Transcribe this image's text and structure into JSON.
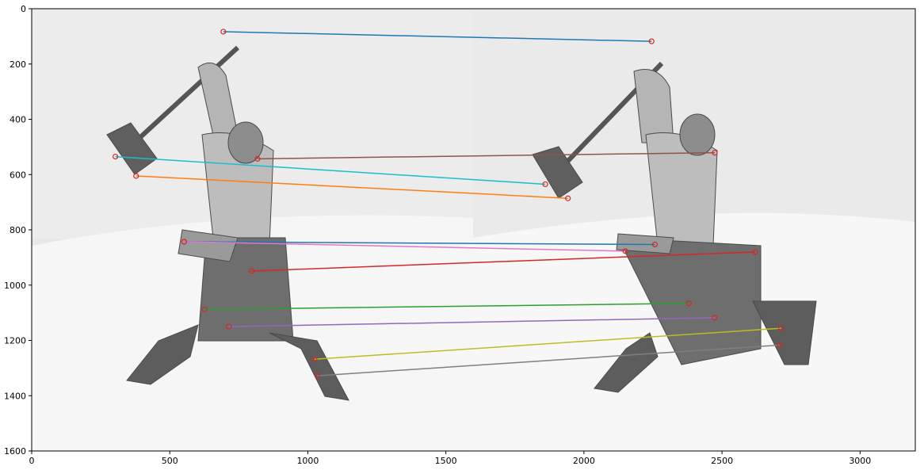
{
  "chart_data": {
    "type": "scatter",
    "title": "",
    "xlabel": "",
    "ylabel": "",
    "xlim": [
      0,
      3200
    ],
    "ylim": [
      1600,
      0
    ],
    "y_inverted": true,
    "grid": false,
    "legend": "none",
    "xticks": [
      "0",
      "500",
      "1000",
      "1500",
      "2000",
      "2500",
      "3000"
    ],
    "yticks": [
      "0",
      "200",
      "400",
      "600",
      "800",
      "1000",
      "1200",
      "1400",
      "1600"
    ],
    "background_image": "two grayscale photographs of a barbarian warrior figurine swinging a hammer, placed side by side",
    "keypoint_color": "#d62728",
    "matches": [
      {
        "color": "#1f77b4",
        "p1": [
          694,
          83
        ],
        "p2": [
          2245,
          118
        ]
      },
      {
        "color": "#8c564b",
        "p1": [
          818,
          543
        ],
        "p2": [
          2474,
          521
        ]
      },
      {
        "color": "#17becf",
        "p1": [
          303,
          535
        ],
        "p2": [
          1860,
          635
        ]
      },
      {
        "color": "#ff7f0e",
        "p1": [
          378,
          605
        ],
        "p2": [
          1942,
          686
        ]
      },
      {
        "color": "#1f77b4",
        "p1": [
          552,
          843
        ],
        "p2": [
          2257,
          853
        ]
      },
      {
        "color": "#e377c2",
        "p1": [
          552,
          843
        ],
        "p2": [
          2150,
          877
        ]
      },
      {
        "color": "#d62728",
        "p1": [
          797,
          949
        ],
        "p2": [
          2620,
          880
        ]
      },
      {
        "color": "#2ca02c",
        "p1": [
          626,
          1088
        ],
        "p2": [
          2380,
          1066
        ]
      },
      {
        "color": "#9467bd",
        "p1": [
          714,
          1150
        ],
        "p2": [
          2473,
          1118
        ]
      },
      {
        "color": "#bcbd22",
        "p1": [
          1024,
          1268
        ],
        "p2": [
          2714,
          1156
        ]
      },
      {
        "color": "#7f7f7f",
        "p1": [
          1034,
          1328
        ],
        "p2": [
          2710,
          1217
        ]
      }
    ]
  }
}
